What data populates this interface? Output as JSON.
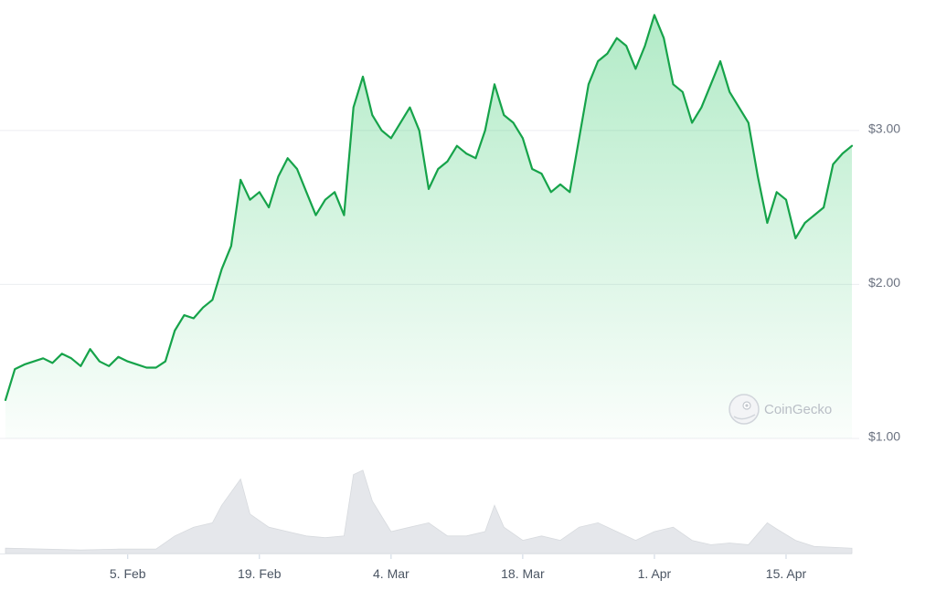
{
  "watermark": {
    "label": "CoinGecko",
    "icon": "gecko-logo-icon"
  },
  "colors": {
    "line": "#16a34a",
    "fill": "#22c55e",
    "volume": "#e5e7eb",
    "grid": "#eceef1"
  },
  "chart_data": {
    "type": "area",
    "title": "",
    "xlabel": "",
    "ylabel": "",
    "x_start": "2024-01-23",
    "x_end": "2024-04-22",
    "ylim": [
      1.0,
      3.8
    ],
    "y_ticks": [
      {
        "value": 1.0,
        "label": "$1.00"
      },
      {
        "value": 2.0,
        "label": "$2.00"
      },
      {
        "value": 3.0,
        "label": "$3.00"
      }
    ],
    "x_ticks": [
      {
        "date": "2024-02-05",
        "label": "5. Feb"
      },
      {
        "date": "2024-02-19",
        "label": "19. Feb"
      },
      {
        "date": "2024-03-04",
        "label": "4. Mar"
      },
      {
        "date": "2024-03-18",
        "label": "18. Mar"
      },
      {
        "date": "2024-04-01",
        "label": "1. Apr"
      },
      {
        "date": "2024-04-15",
        "label": "15. Apr"
      }
    ],
    "grid": true,
    "series": [
      {
        "values": [
          [
            "2024-01-23",
            1.25
          ],
          [
            "2024-01-24",
            1.45
          ],
          [
            "2024-01-25",
            1.48
          ],
          [
            "2024-01-26",
            1.5
          ],
          [
            "2024-01-27",
            1.52
          ],
          [
            "2024-01-28",
            1.49
          ],
          [
            "2024-01-29",
            1.55
          ],
          [
            "2024-01-30",
            1.52
          ],
          [
            "2024-01-31",
            1.47
          ],
          [
            "2024-02-01",
            1.58
          ],
          [
            "2024-02-02",
            1.5
          ],
          [
            "2024-02-03",
            1.47
          ],
          [
            "2024-02-04",
            1.53
          ],
          [
            "2024-02-05",
            1.5
          ],
          [
            "2024-02-06",
            1.48
          ],
          [
            "2024-02-07",
            1.46
          ],
          [
            "2024-02-08",
            1.46
          ],
          [
            "2024-02-09",
            1.5
          ],
          [
            "2024-02-10",
            1.7
          ],
          [
            "2024-02-11",
            1.8
          ],
          [
            "2024-02-12",
            1.78
          ],
          [
            "2024-02-13",
            1.85
          ],
          [
            "2024-02-14",
            1.9
          ],
          [
            "2024-02-15",
            2.1
          ],
          [
            "2024-02-16",
            2.25
          ],
          [
            "2024-02-17",
            2.68
          ],
          [
            "2024-02-18",
            2.55
          ],
          [
            "2024-02-19",
            2.6
          ],
          [
            "2024-02-20",
            2.5
          ],
          [
            "2024-02-21",
            2.7
          ],
          [
            "2024-02-22",
            2.82
          ],
          [
            "2024-02-23",
            2.75
          ],
          [
            "2024-02-24",
            2.6
          ],
          [
            "2024-02-25",
            2.45
          ],
          [
            "2024-02-26",
            2.55
          ],
          [
            "2024-02-27",
            2.6
          ],
          [
            "2024-02-28",
            2.45
          ],
          [
            "2024-02-29",
            3.15
          ],
          [
            "2024-03-01",
            3.35
          ],
          [
            "2024-03-02",
            3.1
          ],
          [
            "2024-03-03",
            3.0
          ],
          [
            "2024-03-04",
            2.95
          ],
          [
            "2024-03-05",
            3.05
          ],
          [
            "2024-03-06",
            3.15
          ],
          [
            "2024-03-07",
            3.0
          ],
          [
            "2024-03-08",
            2.62
          ],
          [
            "2024-03-09",
            2.75
          ],
          [
            "2024-03-10",
            2.8
          ],
          [
            "2024-03-11",
            2.9
          ],
          [
            "2024-03-12",
            2.85
          ],
          [
            "2024-03-13",
            2.82
          ],
          [
            "2024-03-14",
            3.0
          ],
          [
            "2024-03-15",
            3.3
          ],
          [
            "2024-03-16",
            3.1
          ],
          [
            "2024-03-17",
            3.05
          ],
          [
            "2024-03-18",
            2.95
          ],
          [
            "2024-03-19",
            2.75
          ],
          [
            "2024-03-20",
            2.72
          ],
          [
            "2024-03-21",
            2.6
          ],
          [
            "2024-03-22",
            2.65
          ],
          [
            "2024-03-23",
            2.6
          ],
          [
            "2024-03-24",
            2.95
          ],
          [
            "2024-03-25",
            3.3
          ],
          [
            "2024-03-26",
            3.45
          ],
          [
            "2024-03-27",
            3.5
          ],
          [
            "2024-03-28",
            3.6
          ],
          [
            "2024-03-29",
            3.55
          ],
          [
            "2024-03-30",
            3.4
          ],
          [
            "2024-03-31",
            3.55
          ],
          [
            "2024-04-01",
            3.75
          ],
          [
            "2024-04-02",
            3.6
          ],
          [
            "2024-04-03",
            3.3
          ],
          [
            "2024-04-04",
            3.25
          ],
          [
            "2024-04-05",
            3.05
          ],
          [
            "2024-04-06",
            3.15
          ],
          [
            "2024-04-07",
            3.3
          ],
          [
            "2024-04-08",
            3.45
          ],
          [
            "2024-04-09",
            3.25
          ],
          [
            "2024-04-10",
            3.15
          ],
          [
            "2024-04-11",
            3.05
          ],
          [
            "2024-04-12",
            2.7
          ],
          [
            "2024-04-13",
            2.4
          ],
          [
            "2024-04-14",
            2.6
          ],
          [
            "2024-04-15",
            2.55
          ],
          [
            "2024-04-16",
            2.3
          ],
          [
            "2024-04-17",
            2.4
          ],
          [
            "2024-04-18",
            2.45
          ],
          [
            "2024-04-19",
            2.5
          ],
          [
            "2024-04-20",
            2.78
          ],
          [
            "2024-04-21",
            2.85
          ],
          [
            "2024-04-22",
            2.9
          ]
        ]
      }
    ],
    "volume": [
      [
        "2024-01-23",
        0.06
      ],
      [
        "2024-01-27",
        0.05
      ],
      [
        "2024-01-31",
        0.04
      ],
      [
        "2024-02-04",
        0.05
      ],
      [
        "2024-02-08",
        0.05
      ],
      [
        "2024-02-10",
        0.2
      ],
      [
        "2024-02-12",
        0.3
      ],
      [
        "2024-02-14",
        0.35
      ],
      [
        "2024-02-15",
        0.55
      ],
      [
        "2024-02-16",
        0.7
      ],
      [
        "2024-02-17",
        0.85
      ],
      [
        "2024-02-18",
        0.45
      ],
      [
        "2024-02-20",
        0.3
      ],
      [
        "2024-02-22",
        0.25
      ],
      [
        "2024-02-24",
        0.2
      ],
      [
        "2024-02-26",
        0.18
      ],
      [
        "2024-02-28",
        0.2
      ],
      [
        "2024-02-29",
        0.9
      ],
      [
        "2024-03-01",
        0.95
      ],
      [
        "2024-03-02",
        0.6
      ],
      [
        "2024-03-04",
        0.25
      ],
      [
        "2024-03-06",
        0.3
      ],
      [
        "2024-03-08",
        0.35
      ],
      [
        "2024-03-10",
        0.2
      ],
      [
        "2024-03-12",
        0.2
      ],
      [
        "2024-03-14",
        0.25
      ],
      [
        "2024-03-15",
        0.55
      ],
      [
        "2024-03-16",
        0.3
      ],
      [
        "2024-03-18",
        0.15
      ],
      [
        "2024-03-20",
        0.2
      ],
      [
        "2024-03-22",
        0.15
      ],
      [
        "2024-03-24",
        0.3
      ],
      [
        "2024-03-26",
        0.35
      ],
      [
        "2024-03-28",
        0.25
      ],
      [
        "2024-03-30",
        0.15
      ],
      [
        "2024-04-01",
        0.25
      ],
      [
        "2024-04-03",
        0.3
      ],
      [
        "2024-04-05",
        0.15
      ],
      [
        "2024-04-07",
        0.1
      ],
      [
        "2024-04-09",
        0.12
      ],
      [
        "2024-04-11",
        0.1
      ],
      [
        "2024-04-13",
        0.35
      ],
      [
        "2024-04-14",
        0.28
      ],
      [
        "2024-04-16",
        0.15
      ],
      [
        "2024-04-18",
        0.08
      ],
      [
        "2024-04-22",
        0.06
      ]
    ]
  }
}
